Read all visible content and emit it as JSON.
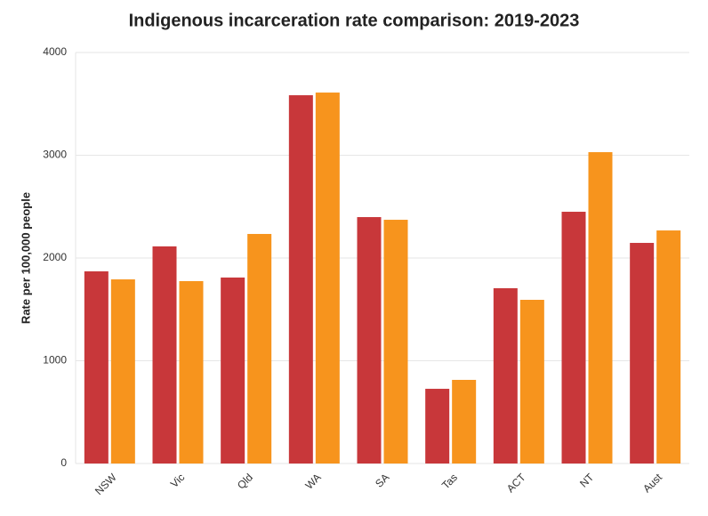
{
  "chart_data": {
    "type": "bar",
    "title": "Indigenous incarceration rate comparison: 2019-2023",
    "y_label": "Rate per 100,000 people",
    "categories": [
      "NSW",
      "Vic",
      "Qld",
      "WA",
      "SA",
      "Tas",
      "ACT",
      "NT",
      "Aust"
    ],
    "series": [
      {
        "color": "#c8373a",
        "values": [
          1870,
          2113,
          1810,
          3584,
          2398,
          727,
          1706,
          2450,
          2147
        ]
      },
      {
        "color": "#f7941d",
        "values": [
          1792,
          1775,
          2234,
          3610,
          2372,
          814,
          1593,
          3030,
          2268
        ]
      }
    ],
    "ylim": [
      0,
      4000
    ],
    "yticks": [
      0,
      1000,
      2000,
      3000,
      4000
    ],
    "grid": true
  }
}
